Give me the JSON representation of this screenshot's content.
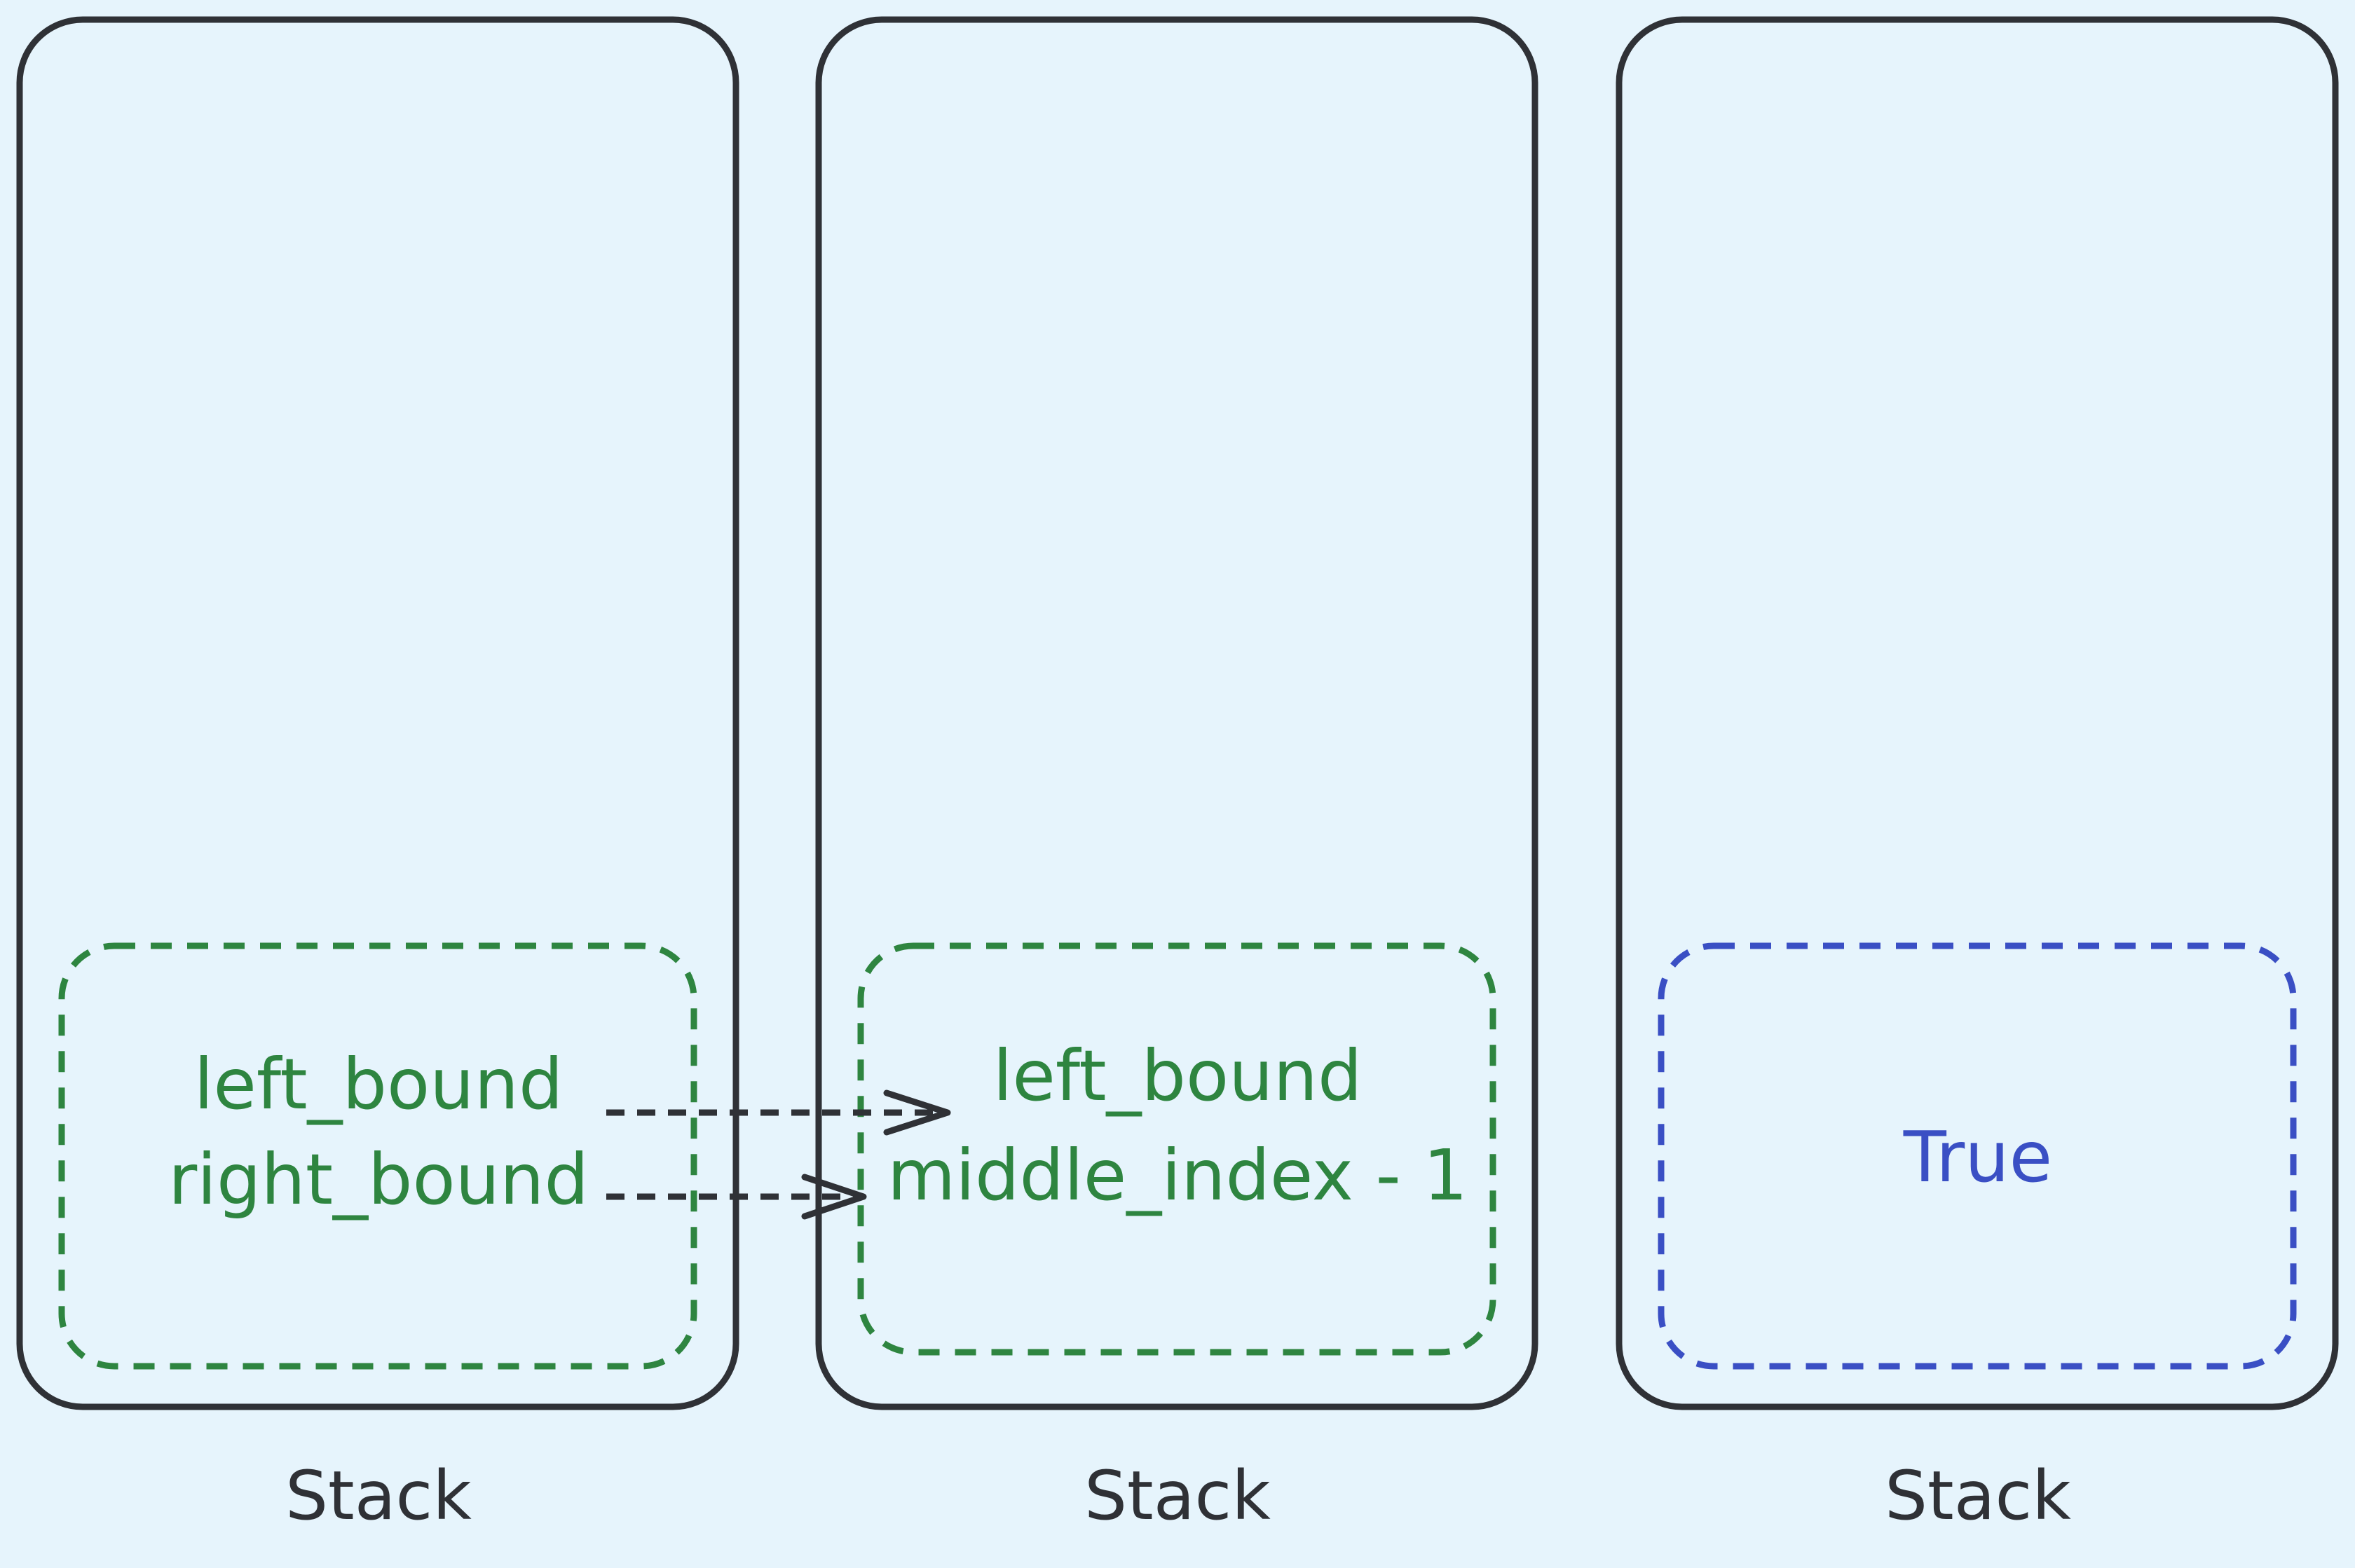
{
  "colors": {
    "background": "#e6f4fc",
    "stack_border": "#2f3136",
    "frame_green": "#2e8540",
    "frame_blue": "#3a4fc4",
    "arrow": "#2f3136"
  },
  "stacks": [
    {
      "label": "Stack",
      "frame": {
        "style": "green-dashed",
        "lines": [
          "left_bound",
          "right_bound"
        ]
      }
    },
    {
      "label": "Stack",
      "frame": {
        "style": "green-dashed",
        "lines": [
          "left_bound",
          "middle_index - 1"
        ]
      }
    },
    {
      "label": "Stack",
      "frame": {
        "style": "blue-dashed",
        "lines": [
          "True"
        ]
      }
    }
  ],
  "arrows": [
    {
      "from": "left_bound",
      "to": "left_bound",
      "style": "dashed"
    },
    {
      "from": "right_bound",
      "to": "middle_index - 1",
      "style": "dashed"
    }
  ]
}
